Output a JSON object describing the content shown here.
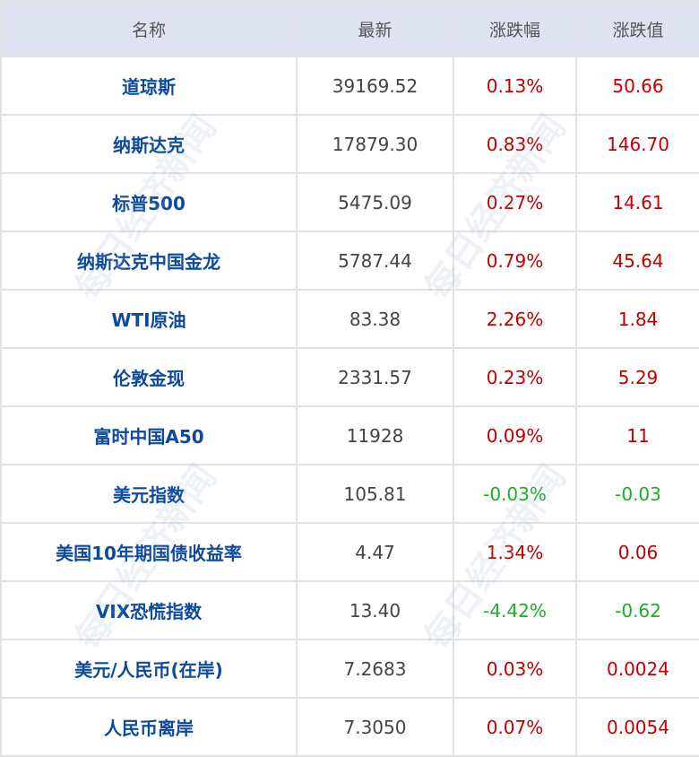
{
  "watermark": "每日经济新闻",
  "colors": {
    "header_bg": "#dfe3f1",
    "name": "#0d4a9c",
    "up": "#c00000",
    "down": "#19b024",
    "latest": "#444444"
  },
  "headers": [
    "名称",
    "最新",
    "涨跌幅",
    "涨跌值"
  ],
  "rows": [
    {
      "name": "道琼斯",
      "latest": "39169.52",
      "pct": "0.13%",
      "chg": "50.66",
      "dir": "up"
    },
    {
      "name": "纳斯达克",
      "latest": "17879.30",
      "pct": "0.83%",
      "chg": "146.70",
      "dir": "up"
    },
    {
      "name": "标普500",
      "latest": "5475.09",
      "pct": "0.27%",
      "chg": "14.61",
      "dir": "up"
    },
    {
      "name": "纳斯达克中国金龙",
      "latest": "5787.44",
      "pct": "0.79%",
      "chg": "45.64",
      "dir": "up"
    },
    {
      "name": "WTI原油",
      "latest": "83.38",
      "pct": "2.26%",
      "chg": "1.84",
      "dir": "up"
    },
    {
      "name": "伦敦金现",
      "latest": "2331.57",
      "pct": "0.23%",
      "chg": "5.29",
      "dir": "up"
    },
    {
      "name": "富时中国A50",
      "latest": "11928",
      "pct": "0.09%",
      "chg": "11",
      "dir": "up"
    },
    {
      "name": "美元指数",
      "latest": "105.81",
      "pct": "-0.03%",
      "chg": "-0.03",
      "dir": "down"
    },
    {
      "name": "美国10年期国债收益率",
      "latest": "4.47",
      "pct": "1.34%",
      "chg": "0.06",
      "dir": "up"
    },
    {
      "name": "VIX恐慌指数",
      "latest": "13.40",
      "pct": "-4.42%",
      "chg": "-0.62",
      "dir": "down"
    },
    {
      "name": "美元/人民币(在岸)",
      "latest": "7.2683",
      "pct": "0.03%",
      "chg": "0.0024",
      "dir": "up"
    },
    {
      "name": "人民币离岸",
      "latest": "7.3050",
      "pct": "0.07%",
      "chg": "0.0054",
      "dir": "up"
    }
  ]
}
